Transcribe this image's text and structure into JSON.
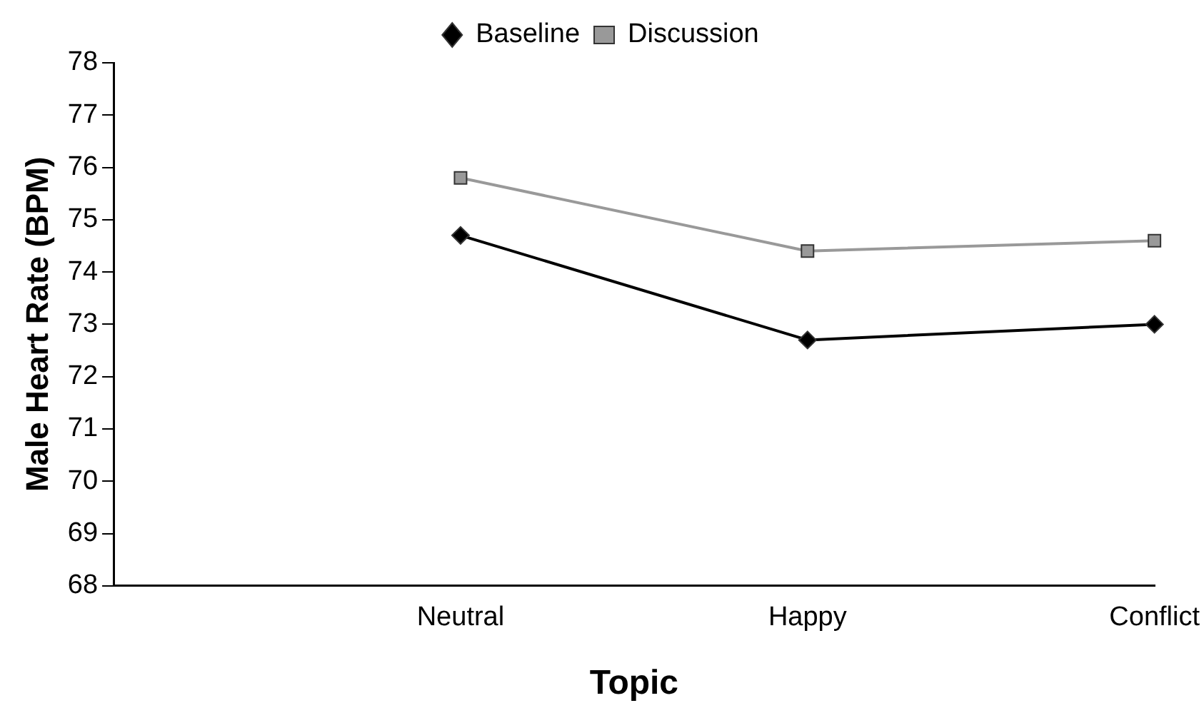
{
  "chart_data": {
    "type": "line",
    "xlabel": "Topic",
    "ylabel": "Male Heart Rate (BPM)",
    "categories": [
      null,
      "Neutral",
      "Happy",
      "Conflict"
    ],
    "series": [
      {
        "name": "Baseline",
        "color": "#000000",
        "marker": "diamond",
        "values": [
          null,
          74.7,
          72.7,
          73.0
        ]
      },
      {
        "name": "Discussion",
        "color": "#999999",
        "marker": "square",
        "values": [
          null,
          75.8,
          74.4,
          74.6
        ]
      }
    ],
    "ylim": [
      68,
      78
    ],
    "yticks": [
      68,
      69,
      70,
      71,
      72,
      73,
      74,
      75,
      76,
      77,
      78
    ],
    "grid": false,
    "legend": "top"
  }
}
